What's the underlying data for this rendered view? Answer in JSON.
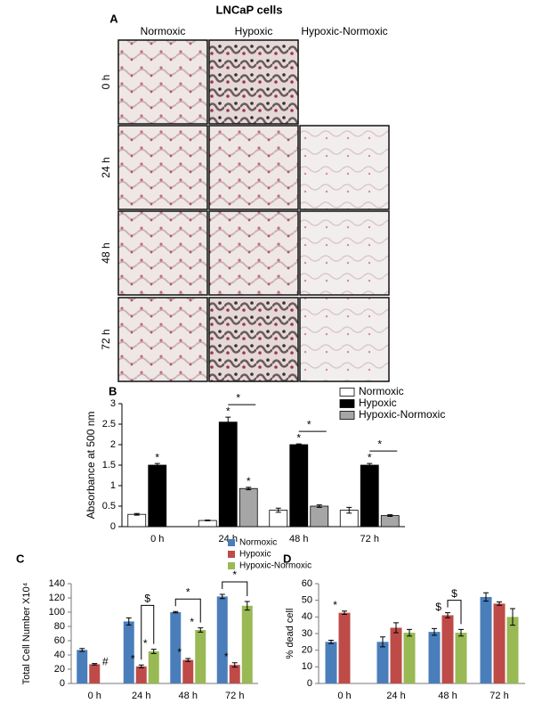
{
  "panel_a": {
    "label": "A",
    "title": "LNCaP cells",
    "columns": [
      "Normoxic",
      "Hypoxic",
      "Hypoxic-Normoxic"
    ],
    "rows": [
      "0 h",
      "24 h",
      "48 h",
      "72 h"
    ]
  },
  "chart_data": [
    {
      "type": "bar",
      "panel_label": "B",
      "ylabel": "Absorbance at 500 nm",
      "categories": [
        "0 h",
        "24 h",
        "48 h",
        "72 h"
      ],
      "ylim": [
        0,
        3
      ],
      "yticks": [
        0,
        0.5,
        1,
        1.5,
        2,
        2.5,
        3
      ],
      "legend": "upper right",
      "series": [
        {
          "name": "Normoxic",
          "color": "#ffffff",
          "values": [
            0.3,
            0.15,
            0.4,
            0.4
          ],
          "errors": [
            0.02,
            0.01,
            0.05,
            0.07
          ]
        },
        {
          "name": "Hypoxic",
          "color": "#000000",
          "values": [
            1.5,
            2.55,
            2.0,
            1.5
          ],
          "errors": [
            0.04,
            0.12,
            0.02,
            0.04
          ]
        },
        {
          "name": "Hypoxic-Normoxic",
          "color": "#a6a6a6",
          "values": [
            null,
            0.93,
            0.5,
            0.27
          ],
          "errors": [
            null,
            0.03,
            0.03,
            0.02
          ]
        }
      ],
      "annotations": [
        {
          "text": "*",
          "category": "0 h",
          "series": "Hypoxic"
        },
        {
          "text": "*",
          "category": "24 h",
          "series": "Hypoxic"
        },
        {
          "text": "*",
          "category": "24 h",
          "series": "Hypoxic-Normoxic"
        },
        {
          "text": "*",
          "category": "24 h",
          "bracket": [
            "Hypoxic",
            "Hypoxic-Normoxic"
          ]
        },
        {
          "text": "*",
          "category": "48 h",
          "series": "Hypoxic"
        },
        {
          "text": "*",
          "category": "48 h",
          "bracket": [
            "Hypoxic",
            "Hypoxic-Normoxic"
          ]
        },
        {
          "text": "*",
          "category": "72 h",
          "series": "Hypoxic"
        },
        {
          "text": "*",
          "category": "72 h",
          "bracket": [
            "Hypoxic",
            "Hypoxic-Normoxic"
          ]
        }
      ]
    },
    {
      "type": "bar",
      "panel_label": "C",
      "ylabel": "Total Cell Number X10⁴",
      "categories": [
        "0 h",
        "24 h",
        "48 h",
        "72 h"
      ],
      "ylim": [
        0,
        140
      ],
      "yticks": [
        0,
        20,
        40,
        60,
        80,
        100,
        120,
        140
      ],
      "legend": "top",
      "series": [
        {
          "name": "Normoxic",
          "color": "#4a7ebb",
          "values": [
            47,
            87,
            100,
            122
          ],
          "errors": [
            2,
            5,
            1,
            3
          ]
        },
        {
          "name": "Hypoxic",
          "color": "#be4b48",
          "values": [
            27,
            24,
            33,
            26
          ],
          "errors": [
            1,
            2,
            2,
            3
          ]
        },
        {
          "name": "Hypoxic-Normoxic",
          "color": "#98b954",
          "values": [
            null,
            45,
            75,
            109
          ],
          "errors": [
            null,
            3,
            3,
            6
          ]
        }
      ],
      "annotations": [
        {
          "text": "#",
          "category": "0 h",
          "series": "Hypoxic"
        },
        {
          "text": "*",
          "category": "24 h",
          "series": "Hypoxic"
        },
        {
          "text": "*",
          "category": "24 h",
          "series": "Hypoxic-Normoxic"
        },
        {
          "text": "$",
          "category": "24 h",
          "bracket": [
            "Hypoxic",
            "Hypoxic-Normoxic"
          ]
        },
        {
          "text": "*",
          "category": "48 h",
          "series": "Hypoxic"
        },
        {
          "text": "*",
          "category": "48 h",
          "series": "Hypoxic-Normoxic"
        },
        {
          "text": "*",
          "category": "48 h",
          "bracket": [
            "Normoxic",
            "Hypoxic-Normoxic"
          ]
        },
        {
          "text": "*",
          "category": "72 h",
          "series": "Hypoxic"
        },
        {
          "text": "*",
          "category": "72 h",
          "bracket": [
            "Normoxic",
            "Hypoxic-Normoxic"
          ]
        }
      ]
    },
    {
      "type": "bar",
      "panel_label": "D",
      "ylabel": "% dead cell",
      "categories": [
        "0 h",
        "24 h",
        "48 h",
        "72 h"
      ],
      "ylim": [
        0,
        60
      ],
      "yticks": [
        0,
        10,
        20,
        30,
        40,
        50,
        60
      ],
      "series": [
        {
          "color": "#4a7ebb",
          "values": [
            25,
            25,
            31,
            52
          ],
          "errors": [
            1,
            3,
            2,
            2.5
          ]
        },
        {
          "color": "#be4b48",
          "values": [
            42.5,
            33.5,
            41,
            48
          ],
          "errors": [
            1,
            3,
            1.5,
            1
          ]
        },
        {
          "color": "#98b954",
          "values": [
            null,
            30.5,
            30.5,
            40
          ],
          "errors": [
            null,
            2,
            2,
            5
          ]
        }
      ],
      "annotations": [
        {
          "text": "*",
          "category": "0 h",
          "series": 1
        },
        {
          "text": "$",
          "category": "48 h",
          "series": 1
        },
        {
          "text": "$",
          "category": "48 h",
          "bracket": [
            1,
            2
          ]
        }
      ]
    }
  ]
}
